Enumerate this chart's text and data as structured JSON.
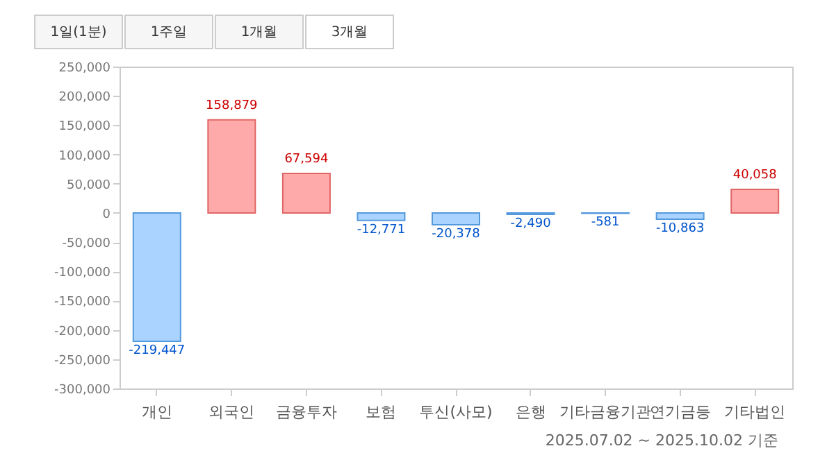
{
  "chart_data": {
    "type": "bar",
    "categories": [
      "개인",
      "외국인",
      "금융투자",
      "보험",
      "투신(사모)",
      "은행",
      "기타금융기관",
      "연기금등",
      "기타법인"
    ],
    "values": [
      -219447,
      158879,
      67594,
      -12771,
      -20378,
      -2490,
      -581,
      -10863,
      40058
    ],
    "colors": [
      "#aad4ff",
      "#ffaaaa",
      "#ffaaaa",
      "#aad4ff",
      "#aad4ff",
      "#aad4ff",
      "#aad4ff",
      "#aad4ff",
      "#ffaaaa"
    ],
    "value_labels": [
      "-219,447",
      "158,879",
      "67,594",
      "-12,771",
      "-20,378",
      "-2,490",
      "-581",
      "-10,863",
      "40,058"
    ],
    "ylim": [
      -300000,
      250000
    ],
    "yticks": [
      {
        "value": -300000,
        "label": "-300,000"
      },
      {
        "value": -250000,
        "label": "-250,000"
      },
      {
        "value": -200000,
        "label": "-200,000"
      },
      {
        "value": -150000,
        "label": "-150,000"
      },
      {
        "value": -100000,
        "label": "-100,000"
      },
      {
        "value": -50000,
        "label": "-50,000"
      },
      0,
      {
        "value": 50000,
        "label": "50,000"
      },
      {
        "value": 100000,
        "label": "100,000"
      },
      {
        "value": 150000,
        "label": "150,000"
      },
      {
        "value": 200000,
        "label": "200,000"
      },
      {
        "value": 250000,
        "label": "250,000"
      }
    ],
    "grid": false,
    "annotations": [
      "1일(1분)",
      "1주일",
      "1개월",
      "3개월",
      "2025.07.02 ~ 2025.10.02 기준"
    ]
  }
}
